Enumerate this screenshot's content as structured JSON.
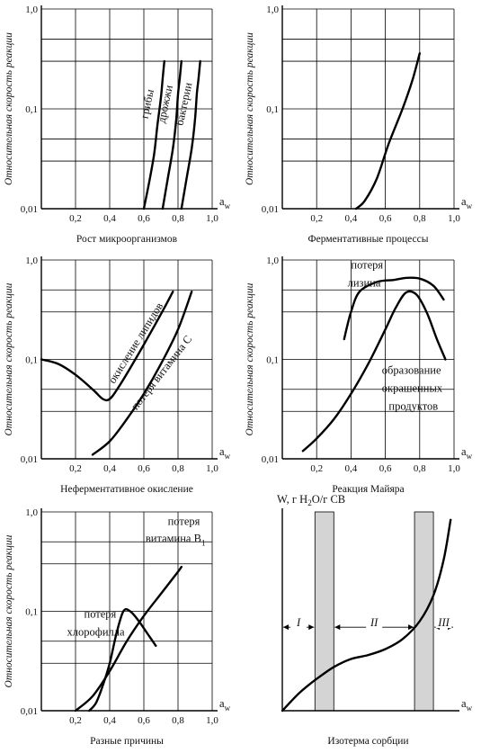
{
  "y_axis_label": "Относительная скорость реакции",
  "x_axis_symbol": "a",
  "x_axis_subscript": "w",
  "chart_data": [
    {
      "type": "line",
      "title": "Рост микроорганизмов",
      "ylabel": "Относительная скорость реакции",
      "xlim": [
        0,
        1
      ],
      "ylim": [
        0.01,
        1
      ],
      "yscale": "log",
      "yticks": [
        "1,0",
        "0,1",
        "0,01"
      ],
      "xticks": [
        "0,2",
        "0,4",
        "0,6",
        "0,8",
        "1,0"
      ],
      "series": [
        {
          "name": "грибы",
          "x": [
            0.6,
            0.63,
            0.66,
            0.68,
            0.7,
            0.71,
            0.72
          ],
          "y": [
            0.01,
            0.018,
            0.035,
            0.07,
            0.13,
            0.2,
            0.3
          ]
        },
        {
          "name": "дрожжи",
          "x": [
            0.71,
            0.74,
            0.77,
            0.79,
            0.8,
            0.81,
            0.82
          ],
          "y": [
            0.01,
            0.02,
            0.04,
            0.08,
            0.14,
            0.2,
            0.3
          ]
        },
        {
          "name": "бактерии",
          "x": [
            0.82,
            0.85,
            0.88,
            0.9,
            0.91,
            0.92,
            0.93
          ],
          "y": [
            0.01,
            0.02,
            0.04,
            0.08,
            0.14,
            0.2,
            0.3
          ]
        }
      ]
    },
    {
      "type": "line",
      "title": "Ферментативные процессы",
      "ylabel": "Относительная скорость реакции",
      "xlim": [
        0,
        1
      ],
      "ylim": [
        0.01,
        1
      ],
      "yscale": "log",
      "yticks": [
        "1,0",
        "0,1",
        "0,01"
      ],
      "xticks": [
        "0,2",
        "0,4",
        "0,6",
        "0,8",
        "1,0"
      ],
      "series": [
        {
          "name": "",
          "x": [
            0.43,
            0.48,
            0.55,
            0.62,
            0.7,
            0.76,
            0.8
          ],
          "y": [
            0.01,
            0.012,
            0.02,
            0.045,
            0.1,
            0.2,
            0.36
          ]
        }
      ]
    },
    {
      "type": "line",
      "title": "Неферментативное окисление",
      "ylabel": "Относительная скорость реакции",
      "xlim": [
        0,
        1
      ],
      "ylim": [
        0.01,
        1
      ],
      "yscale": "log",
      "yticks": [
        "1,0",
        "0,1",
        "0,01"
      ],
      "xticks": [
        "0,2",
        "0,4",
        "0,6",
        "0,8",
        "1,0"
      ],
      "series": [
        {
          "name": "окисление липидов",
          "x": [
            0.0,
            0.1,
            0.2,
            0.3,
            0.36,
            0.4,
            0.45,
            0.55,
            0.65,
            0.72,
            0.77
          ],
          "y": [
            0.1,
            0.09,
            0.07,
            0.05,
            0.04,
            0.04,
            0.052,
            0.1,
            0.2,
            0.33,
            0.48
          ]
        },
        {
          "name": "потеря витамина C",
          "x": [
            0.3,
            0.4,
            0.5,
            0.6,
            0.7,
            0.8,
            0.88
          ],
          "y": [
            0.011,
            0.015,
            0.025,
            0.045,
            0.09,
            0.2,
            0.48
          ]
        }
      ]
    },
    {
      "type": "line",
      "title": "Реакция Майяра",
      "ylabel": "Относительная скорость реакции",
      "xlim": [
        0,
        1
      ],
      "ylim": [
        0.01,
        1
      ],
      "yscale": "log",
      "yticks": [
        "1,0",
        "0,1",
        "0,01"
      ],
      "xticks": [
        "0,2",
        "0,4",
        "0,6",
        "0,8",
        "1,0"
      ],
      "annotations": [
        "потеря лизина",
        "образование окрашенных продуктов"
      ],
      "series": [
        {
          "name": "потеря лизина",
          "x": [
            0.36,
            0.4,
            0.45,
            0.55,
            0.65,
            0.72,
            0.8,
            0.88,
            0.94
          ],
          "y": [
            0.16,
            0.3,
            0.48,
            0.6,
            0.63,
            0.66,
            0.65,
            0.55,
            0.4
          ]
        },
        {
          "name": "образование окрашенных продуктов",
          "x": [
            0.12,
            0.2,
            0.3,
            0.4,
            0.5,
            0.6,
            0.66,
            0.72,
            0.78,
            0.84,
            0.9,
            0.95
          ],
          "y": [
            0.012,
            0.016,
            0.025,
            0.045,
            0.09,
            0.2,
            0.33,
            0.47,
            0.45,
            0.3,
            0.16,
            0.1
          ]
        }
      ]
    },
    {
      "type": "line",
      "title": "Разные причины",
      "ylabel": "Относительная скорость реакции",
      "xlim": [
        0,
        1
      ],
      "ylim": [
        0.01,
        1
      ],
      "yscale": "log",
      "yticks": [
        "1,0",
        "0,1",
        "0,01"
      ],
      "xticks": [
        "0,2",
        "0,4",
        "0,6",
        "0,8",
        "1,0"
      ],
      "annotations": [
        "потеря витамина B1",
        "потеря хлорофилла"
      ],
      "series": [
        {
          "name": "потеря витамина B1",
          "x": [
            0.2,
            0.3,
            0.4,
            0.5,
            0.6,
            0.7,
            0.8,
            0.82
          ],
          "y": [
            0.01,
            0.014,
            0.025,
            0.05,
            0.09,
            0.15,
            0.25,
            0.28
          ]
        },
        {
          "name": "потеря хлорофилла",
          "x": [
            0.28,
            0.32,
            0.36,
            0.4,
            0.44,
            0.48,
            0.52,
            0.57,
            0.62,
            0.67
          ],
          "y": [
            0.01,
            0.012,
            0.018,
            0.03,
            0.06,
            0.1,
            0.1,
            0.08,
            0.06,
            0.045
          ]
        }
      ]
    },
    {
      "type": "line",
      "title": "Изотерма сорбции",
      "ylabel": "W, г H2O/г СВ",
      "xlim": [
        0,
        1
      ],
      "ylim": [
        0,
        1
      ],
      "zones": [
        "I",
        "II",
        "III"
      ],
      "shaded_aw_bands": [
        [
          0.19,
          0.3
        ],
        [
          0.77,
          0.88
        ]
      ],
      "series": [
        {
          "name": "",
          "x": [
            0.0,
            0.1,
            0.2,
            0.3,
            0.4,
            0.5,
            0.6,
            0.7,
            0.8,
            0.88,
            0.94,
            0.98
          ],
          "y": [
            0.0,
            0.09,
            0.16,
            0.22,
            0.26,
            0.28,
            0.31,
            0.36,
            0.45,
            0.58,
            0.76,
            0.96
          ]
        }
      ]
    }
  ],
  "panel3_ylabel_units": "W, г H",
  "panel3_ylabel_sub": "2",
  "panel3_ylabel_tail": "O/г СВ",
  "b1_label_line1": "потеря",
  "b1_label_line2": "витамина B",
  "b1_label_sub": "1",
  "chl_label_line1": "потеря",
  "chl_label_line2": "хлорофилла",
  "lys_label_line1": "потеря",
  "lys_label_line2": "лизина",
  "col_label_line1": "образование",
  "col_label_line2": "окрашенных",
  "col_label_line3": "продуктов"
}
